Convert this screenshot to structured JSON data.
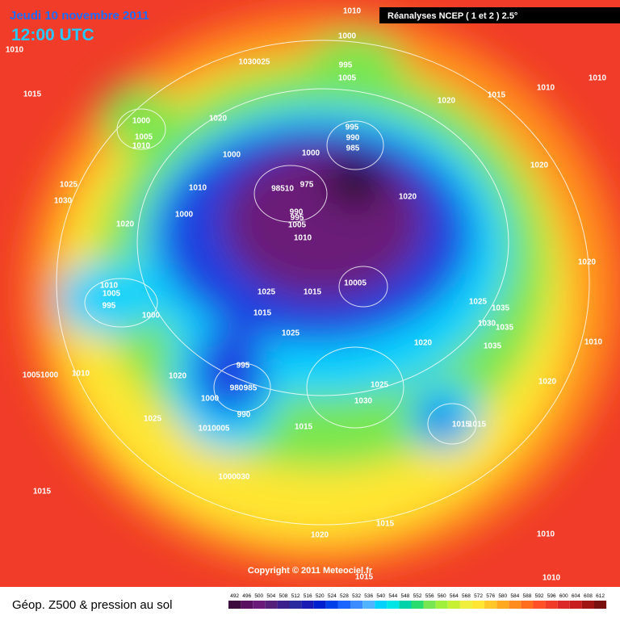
{
  "header": {
    "date": "Jeudi 10 novembre 2011",
    "time": "12:00 UTC",
    "source": "Réanalyses NCEP ( 1 et 2 ) 2.5°"
  },
  "copyright": "Copyright © 2011 Meteociel.fr",
  "legend_title": "Géop. Z500 & pression au sol",
  "colorbar": {
    "ticks": [
      492,
      496,
      500,
      504,
      508,
      512,
      516,
      520,
      524,
      528,
      532,
      536,
      540,
      544,
      548,
      552,
      556,
      560,
      564,
      568,
      572,
      576,
      580,
      584,
      588,
      592,
      596,
      600,
      604,
      608,
      612
    ],
    "colors": [
      "#3c0a3c",
      "#5a1060",
      "#6a1a78",
      "#55207a",
      "#3c1e8c",
      "#2a2a9e",
      "#1a1ab4",
      "#0020d0",
      "#0040e8",
      "#1a64ff",
      "#3c8cff",
      "#50b4ff",
      "#00d2ff",
      "#00e6e6",
      "#00d2aa",
      "#28dc6e",
      "#78e650",
      "#a0f03c",
      "#c8f032",
      "#f0f03c",
      "#ffe632",
      "#ffc828",
      "#ffaa1e",
      "#ff8c1e",
      "#ff6e1e",
      "#ff5028",
      "#f03c28",
      "#dc2828",
      "#c81e1e",
      "#a01414",
      "#781010"
    ]
  },
  "isobar_labels": [
    "1010",
    "1010",
    "1000",
    "1030025",
    "995",
    "1005",
    "1015",
    "1000",
    "1005",
    "1010",
    "1020",
    "1020",
    "1015",
    "1010",
    "1010",
    "995",
    "990",
    "985",
    "1000",
    "1000",
    "1020",
    "1010",
    "1025",
    "1030",
    "975",
    "98510",
    "1020",
    "1000",
    "990",
    "995",
    "1005",
    "1010",
    "1020",
    "1020",
    "1010",
    "1005",
    "995",
    "1000",
    "1025",
    "1015",
    "10005",
    "1025",
    "1015",
    "1035",
    "1030",
    "1035",
    "1025",
    "1020",
    "1035",
    "1010",
    "995",
    "1020",
    "1010",
    "10051000",
    "1025",
    "1020",
    "980",
    "985",
    "1000",
    "1030",
    "990",
    "1025",
    "1015",
    "1015",
    "1015",
    "1010005",
    "1000030",
    "1015",
    "1015",
    "1020",
    "1010",
    "1015",
    "1010"
  ]
}
